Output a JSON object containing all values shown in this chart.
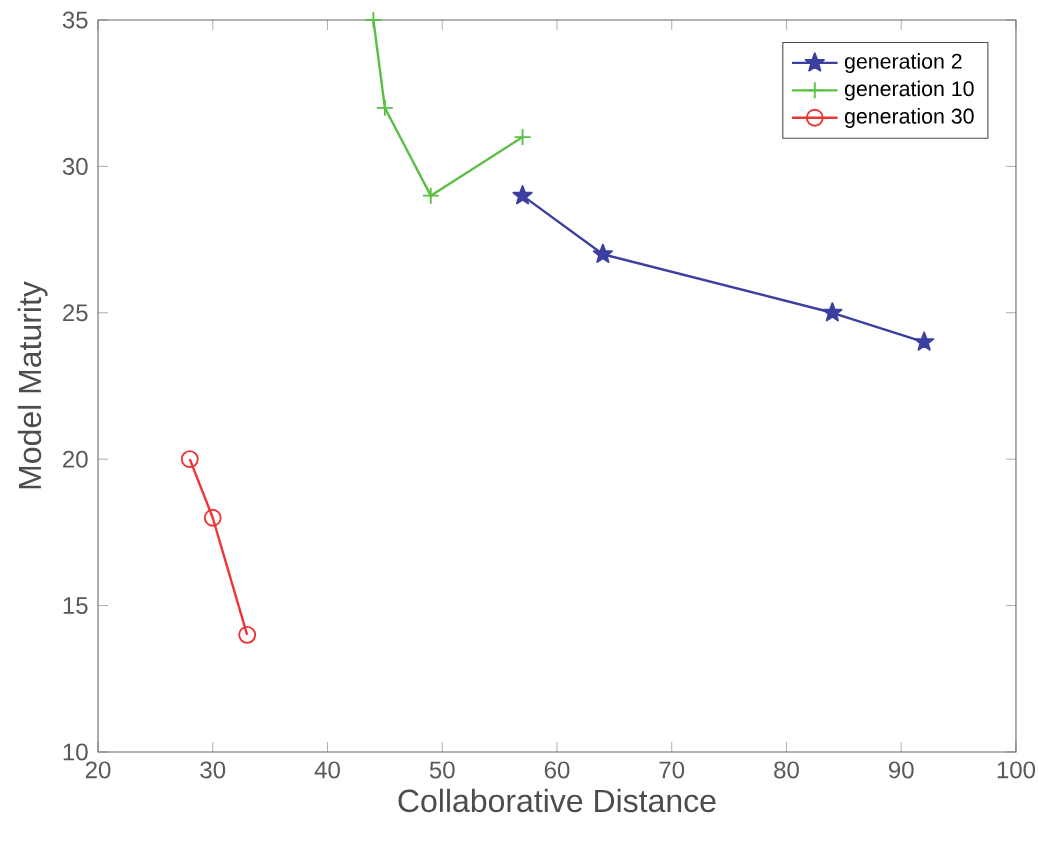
{
  "chart_data": {
    "type": "line",
    "xlabel": "Collaborative Distance",
    "ylabel": "Model Maturity",
    "xlim": [
      20,
      100
    ],
    "xticks": [
      20,
      30,
      40,
      50,
      60,
      70,
      80,
      90,
      100
    ],
    "ylim": [
      10,
      35
    ],
    "yticks": [
      10,
      15,
      20,
      25,
      30,
      35
    ],
    "grid": false,
    "legend": "top right",
    "series": [
      {
        "name": "generation 2",
        "color": "#3b3fa0",
        "marker": "star",
        "x": [
          57,
          64,
          84,
          92
        ],
        "values": [
          29,
          27,
          25,
          24
        ]
      },
      {
        "name": "generation 10",
        "color": "#5cbf45",
        "marker": "cross",
        "x": [
          44,
          45,
          49,
          57
        ],
        "values": [
          35,
          32,
          29,
          31
        ]
      },
      {
        "name": "generation 30",
        "color": "#ee3535",
        "marker": "circle",
        "x": [
          28,
          30,
          33
        ],
        "values": [
          20,
          18,
          14
        ]
      }
    ]
  }
}
